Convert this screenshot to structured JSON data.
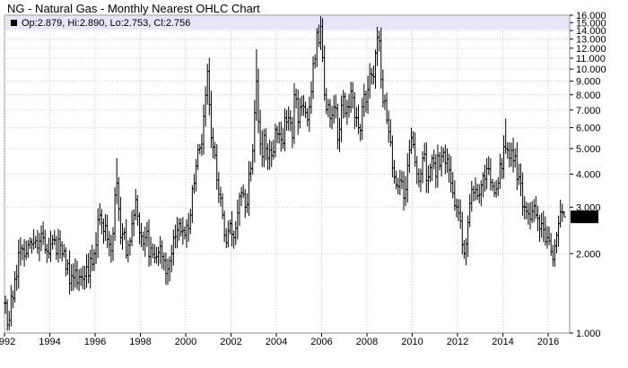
{
  "title": "NG - Natural Gas - Monthly Nearest OHLC Chart",
  "info": "Op:2.879, Hi:2.890, Lo:2.753, Cl:2.756",
  "last_label": "2.756",
  "colors": {
    "plot_border": "#8c8c8c",
    "grid": "#c9c9c9",
    "info_band": "#e6e6f8",
    "bars": "#000000",
    "last_bg": "#000000",
    "last_fg": "#ffffff"
  },
  "chart_data": {
    "type": "ohlc",
    "title": "NG - Natural Gas - Monthly Nearest OHLC Chart",
    "x_tick_labels": [
      "1992",
      "1994",
      "1996",
      "1998",
      "2000",
      "2002",
      "2004",
      "2006",
      "2008",
      "2010",
      "2012",
      "2014",
      "2016"
    ],
    "y_tick_labels": [
      "1.000",
      "2.000",
      "3.000",
      "4.000",
      "5.000",
      "6.000",
      "7.000",
      "8.000",
      "9.000",
      "10.000",
      "11.000",
      "12.000",
      "13.000",
      "14.000",
      "15.000",
      "16.000"
    ],
    "y_scale": "log",
    "ylim": [
      1.0,
      16.0
    ],
    "xlim": [
      1992.0,
      2016.95
    ],
    "grid": true,
    "last_value": 2.756,
    "last_bar": {
      "date": "2016-09",
      "open": 2.879,
      "high": 2.89,
      "low": 2.753,
      "close": 2.756
    },
    "anchors": [
      [
        "1992-01",
        1.3
      ],
      [
        "1992-03",
        1.12
      ],
      [
        "1992-06",
        1.6
      ],
      [
        "1992-09",
        2.1
      ],
      [
        "1992-12",
        2.0
      ],
      [
        "1993-04",
        2.2
      ],
      [
        "1993-06",
        2.1
      ],
      [
        "1993-09",
        2.3
      ],
      [
        "1993-12",
        2.0
      ],
      [
        "1994-03",
        2.25
      ],
      [
        "1994-06",
        2.15
      ],
      [
        "1994-09",
        1.75
      ],
      [
        "1994-12",
        1.65
      ],
      [
        "1995-03",
        1.55
      ],
      [
        "1995-06",
        1.6
      ],
      [
        "1995-09",
        1.65
      ],
      [
        "1995-12",
        2.0
      ],
      [
        "1996-03",
        2.8
      ],
      [
        "1996-06",
        2.55
      ],
      [
        "1996-09",
        2.05
      ],
      [
        "1996-12",
        3.7
      ],
      [
        "1997-02",
        2.3
      ],
      [
        "1997-06",
        2.15
      ],
      [
        "1997-09",
        2.8
      ],
      [
        "1997-10",
        3.2
      ],
      [
        "1997-12",
        2.4
      ],
      [
        "1998-03",
        2.3
      ],
      [
        "1998-06",
        2.1
      ],
      [
        "1998-09",
        1.95
      ],
      [
        "1998-12",
        1.95
      ],
      [
        "1999-03",
        1.75
      ],
      [
        "1999-06",
        2.3
      ],
      [
        "1999-09",
        2.6
      ],
      [
        "1999-12",
        2.35
      ],
      [
        "2000-03",
        2.8
      ],
      [
        "2000-06",
        4.3
      ],
      [
        "2000-09",
        5.2
      ],
      [
        "2000-12",
        9.8
      ],
      [
        "2001-02",
        5.5
      ],
      [
        "2001-05",
        3.8
      ],
      [
        "2001-08",
        2.8
      ],
      [
        "2001-10",
        2.2
      ],
      [
        "2001-12",
        2.6
      ],
      [
        "2002-02",
        2.3
      ],
      [
        "2002-05",
        3.3
      ],
      [
        "2002-08",
        3.0
      ],
      [
        "2002-11",
        4.2
      ],
      [
        "2003-02",
        9.0
      ],
      [
        "2003-04",
        5.2
      ],
      [
        "2003-07",
        5.0
      ],
      [
        "2003-10",
        4.7
      ],
      [
        "2003-12",
        5.9
      ],
      [
        "2004-03",
        5.4
      ],
      [
        "2004-06",
        6.3
      ],
      [
        "2004-09",
        5.5
      ],
      [
        "2004-10",
        8.0
      ],
      [
        "2004-12",
        6.3
      ],
      [
        "2005-03",
        7.2
      ],
      [
        "2005-06",
        7.2
      ],
      [
        "2005-08",
        10.5
      ],
      [
        "2005-10",
        13.8
      ],
      [
        "2005-12",
        14.5
      ],
      [
        "2006-02",
        8.0
      ],
      [
        "2006-05",
        6.5
      ],
      [
        "2006-08",
        7.1
      ],
      [
        "2006-09",
        5.4
      ],
      [
        "2006-11",
        7.3
      ],
      [
        "2007-02",
        7.2
      ],
      [
        "2007-05",
        7.8
      ],
      [
        "2007-08",
        6.0
      ],
      [
        "2007-10",
        7.2
      ],
      [
        "2007-12",
        7.5
      ],
      [
        "2008-03",
        9.5
      ],
      [
        "2008-05",
        11.5
      ],
      [
        "2008-07",
        12.8
      ],
      [
        "2008-09",
        7.5
      ],
      [
        "2008-12",
        5.8
      ],
      [
        "2009-03",
        3.9
      ],
      [
        "2009-06",
        3.8
      ],
      [
        "2009-09",
        3.5
      ],
      [
        "2009-12",
        5.5
      ],
      [
        "2010-03",
        4.0
      ],
      [
        "2010-06",
        4.6
      ],
      [
        "2010-09",
        3.9
      ],
      [
        "2010-12",
        4.4
      ],
      [
        "2011-03",
        4.3
      ],
      [
        "2011-06",
        4.4
      ],
      [
        "2011-09",
        3.7
      ],
      [
        "2011-12",
        3.0
      ],
      [
        "2012-04",
        2.0
      ],
      [
        "2012-07",
        3.1
      ],
      [
        "2012-10",
        3.5
      ],
      [
        "2012-12",
        3.35
      ],
      [
        "2013-04",
        4.2
      ],
      [
        "2013-07",
        3.6
      ],
      [
        "2013-10",
        3.7
      ],
      [
        "2013-12",
        4.2
      ],
      [
        "2014-02",
        5.0
      ],
      [
        "2014-04",
        4.6
      ],
      [
        "2014-06",
        4.5
      ],
      [
        "2014-09",
        3.9
      ],
      [
        "2014-12",
        3.0
      ],
      [
        "2015-03",
        2.7
      ],
      [
        "2015-06",
        2.8
      ],
      [
        "2015-09",
        2.6
      ],
      [
        "2015-12",
        2.3
      ],
      [
        "2016-03",
        1.9
      ],
      [
        "2016-06",
        2.6
      ],
      [
        "2016-08",
        2.85
      ],
      [
        "2016-09",
        2.756
      ]
    ],
    "spikes": [
      [
        "1996-12",
        4.6
      ],
      [
        "2000-12",
        10.1
      ],
      [
        "2003-02",
        11.9
      ],
      [
        "2005-12",
        15.8
      ],
      [
        "2008-07",
        13.7
      ],
      [
        "2014-02",
        6.5
      ]
    ]
  }
}
